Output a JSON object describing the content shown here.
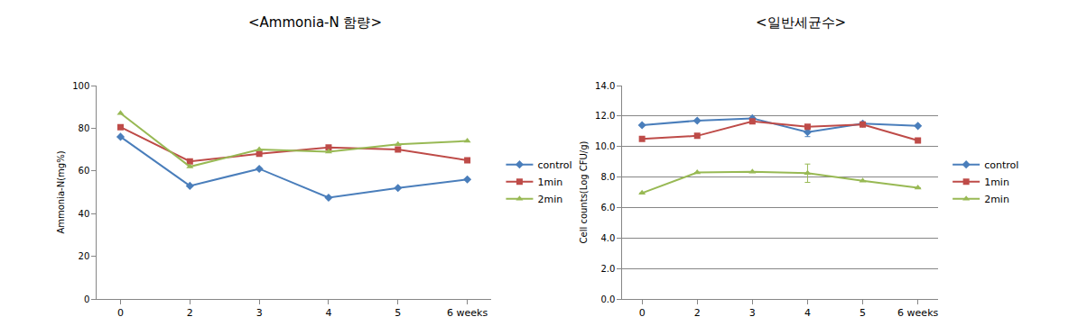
{
  "chart_data": [
    {
      "type": "line",
      "title": "<Ammonia-N 함량>",
      "y_label": "Ammonia-N(mg%)",
      "categories": [
        "0",
        "2",
        "3",
        "4",
        "5",
        "6 weeks"
      ],
      "ylim": [
        0,
        100
      ],
      "yticks": [
        0,
        20,
        40,
        60,
        80,
        100
      ],
      "grid": false,
      "legend": "right",
      "series": [
        {
          "name": "control",
          "color": "#4a7ebb",
          "marker": "diamond",
          "values": [
            76,
            53,
            61,
            47.5,
            52,
            56
          ]
        },
        {
          "name": "1min",
          "color": "#be4b48",
          "marker": "square",
          "values": [
            80.5,
            64.5,
            68,
            71,
            70,
            65
          ]
        },
        {
          "name": "2min",
          "color": "#98b954",
          "marker": "triangle-up",
          "values": [
            87,
            62,
            70,
            69,
            72.5,
            74
          ]
        }
      ]
    },
    {
      "type": "line",
      "title": "<일반세균수>",
      "y_label": "Cell counts(Log CFU/g)",
      "categories": [
        "0",
        "2",
        "3",
        "4",
        "5",
        "6 weeks"
      ],
      "ylim": [
        0,
        14
      ],
      "yticks": [
        {
          "value": 0,
          "label": "0.0"
        },
        {
          "value": 2,
          "label": "2.0"
        },
        {
          "value": 4,
          "label": "4.0"
        },
        {
          "value": 6,
          "label": "6.0"
        },
        {
          "value": 8,
          "label": "8.0"
        },
        {
          "value": 10,
          "label": "10.0"
        },
        {
          "value": 12,
          "label": "12.0"
        },
        {
          "value": 14,
          "label": "14.0"
        }
      ],
      "grid": true,
      "legend": "right",
      "series": [
        {
          "name": "control",
          "color": "#4a7ebb",
          "marker": "diamond",
          "values": [
            11.4,
            11.7,
            11.85,
            10.95,
            11.5,
            11.35
          ],
          "errors": [
            null,
            null,
            null,
            0.3,
            null,
            null
          ]
        },
        {
          "name": "1min",
          "color": "#be4b48",
          "marker": "square",
          "values": [
            10.5,
            10.7,
            11.65,
            11.3,
            11.45,
            10.4
          ]
        },
        {
          "name": "2min",
          "color": "#98b954",
          "marker": "triangle-up",
          "values": [
            6.95,
            8.3,
            8.35,
            8.25,
            7.75,
            7.3
          ],
          "errors": [
            null,
            null,
            null,
            0.6,
            null,
            null
          ]
        }
      ]
    }
  ]
}
